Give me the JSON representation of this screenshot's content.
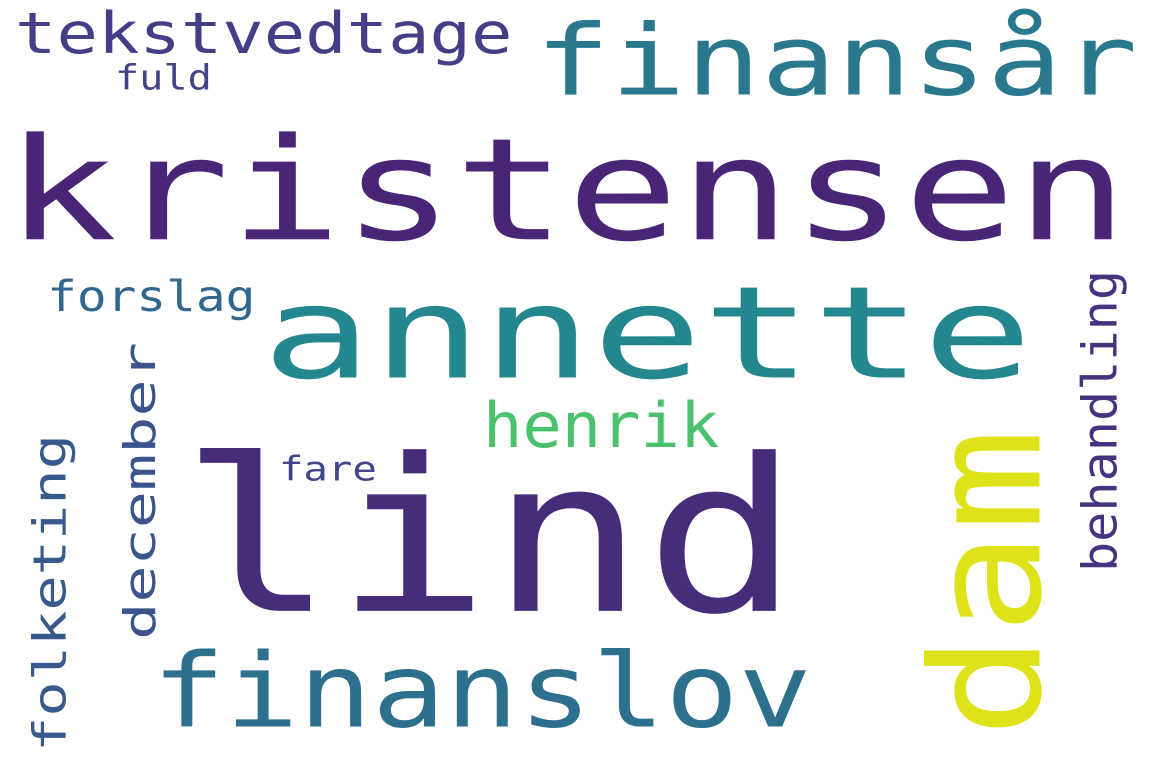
{
  "words": [
    {
      "text": "kristensen",
      "color": "#482576"
    },
    {
      "text": "lind",
      "color": "#472c7a"
    },
    {
      "text": "annette",
      "color": "#24868e"
    },
    {
      "text": "finansår",
      "color": "#2a788e"
    },
    {
      "text": "dam",
      "color": "#dde318"
    },
    {
      "text": "finanslov",
      "color": "#2d708e"
    },
    {
      "text": "tekstvedtage",
      "color": "#433e85"
    },
    {
      "text": "december",
      "color": "#3a548c"
    },
    {
      "text": "folketing",
      "color": "#38598c"
    },
    {
      "text": "henrik",
      "color": "#4ac16d"
    },
    {
      "text": "behandling",
      "color": "#46327e"
    },
    {
      "text": "forslag",
      "color": "#31668e"
    },
    {
      "text": "fare",
      "color": "#404688"
    },
    {
      "text": "fuld",
      "color": "#414487"
    }
  ]
}
